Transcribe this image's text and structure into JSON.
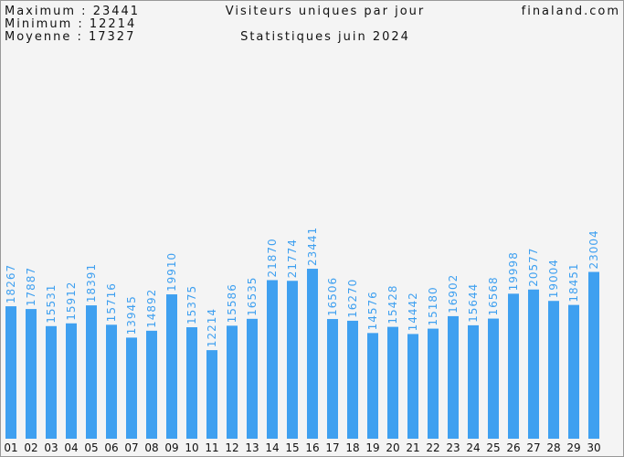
{
  "chart_data": {
    "type": "bar",
    "title": "Visiteurs uniques par jour",
    "subtitle": "Statistiques juin 2024",
    "site": "finaland.com",
    "summary": [
      "Maximum : 23441",
      "Minimum : 12214",
      "Moyenne : 17327"
    ],
    "categories": [
      "01",
      "02",
      "03",
      "04",
      "05",
      "06",
      "07",
      "08",
      "09",
      "10",
      "11",
      "12",
      "13",
      "14",
      "15",
      "16",
      "17",
      "18",
      "19",
      "20",
      "21",
      "22",
      "23",
      "24",
      "25",
      "26",
      "27",
      "28",
      "29",
      "30"
    ],
    "values": [
      18267,
      17887,
      15531,
      15912,
      18391,
      15716,
      13945,
      14892,
      19910,
      15375,
      12214,
      15586,
      16535,
      21870,
      21774,
      23441,
      16506,
      16270,
      14576,
      15428,
      14442,
      15180,
      16902,
      15644,
      16568,
      19998,
      20577,
      19004,
      18451,
      23004
    ],
    "color": "#3fa0f0",
    "ylim": [
      0,
      60000
    ]
  }
}
